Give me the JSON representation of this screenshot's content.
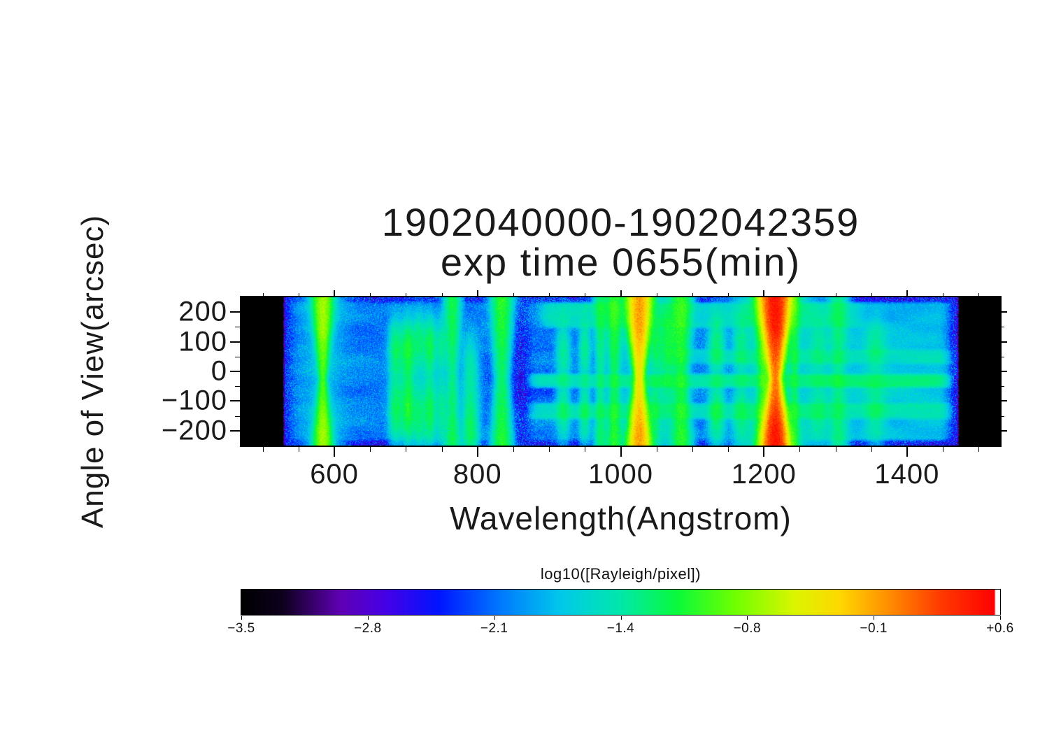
{
  "figure": {
    "background": "#ffffff",
    "axis_color": "#000000",
    "text_color": "#1a1a1a"
  },
  "title": {
    "line1": "1902040000-1902042359",
    "line2": "exp time 0655(min)"
  },
  "axes": {
    "x_label": "Wavelength(Angstrom)",
    "y_label": "Angle of View(arcsec)"
  },
  "colorbar": {
    "label": "log10([Rayleigh/pixel])",
    "tick_labels": [
      "−3.5",
      "−2.8",
      "−2.1",
      "−1.4",
      "−0.8",
      "−0.1",
      "+0.6"
    ],
    "tick_values": [
      -3.5,
      -2.8,
      -2.1,
      -1.4,
      -0.8,
      -0.1,
      0.6
    ],
    "min": -3.5,
    "max": 0.6
  },
  "chart_data": {
    "type": "heatmap",
    "title": "1902040000-1902042359",
    "subtitle": "exp time 0655(min)",
    "xlabel": "Wavelength(Angstrom)",
    "ylabel": "Angle of View(arcsec)",
    "xlim": [
      470,
      1530
    ],
    "ylim": [
      -250,
      250
    ],
    "x_tick_values": [
      600,
      800,
      1000,
      1200,
      1400
    ],
    "x_tick_labels": [
      "600",
      "800",
      "1000",
      "1200",
      "1400"
    ],
    "x_minor_step": 50,
    "y_tick_values": [
      200,
      100,
      0,
      -100,
      -200
    ],
    "y_tick_labels": [
      "200",
      "100",
      "0",
      "−100",
      "−200"
    ],
    "y_minor_step": 50,
    "value_scale": "log10([Rayleigh/pixel])",
    "value_range": [
      -3.5,
      0.6
    ],
    "data_region_angstrom": [
      528,
      1473
    ],
    "background_log10": -2.45,
    "noise_sigma_log10": 0.32,
    "emission_lines": [
      {
        "wavelength": 584,
        "peak_log10": -0.75,
        "width_angstrom": 8,
        "profile": "hourglass"
      },
      {
        "wavelength": 584,
        "peak_log10": -1.9,
        "width_angstrom": 22,
        "profile": "halo"
      },
      {
        "wavelength": 686,
        "peak_log10": -1.3,
        "width_angstrom": 6,
        "profile": "lobes"
      },
      {
        "wavelength": 703,
        "peak_log10": -1.15,
        "width_angstrom": 6,
        "profile": "lobes"
      },
      {
        "wavelength": 718,
        "peak_log10": -1.4,
        "width_angstrom": 5,
        "profile": "lobes"
      },
      {
        "wavelength": 733,
        "peak_log10": -1.25,
        "width_angstrom": 6,
        "profile": "lobes"
      },
      {
        "wavelength": 750,
        "peak_log10": -1.5,
        "width_angstrom": 5,
        "profile": "lobes"
      },
      {
        "wavelength": 765,
        "peak_log10": -1.2,
        "width_angstrom": 7,
        "profile": "geocoronal"
      },
      {
        "wavelength": 790,
        "peak_log10": -1.3,
        "width_angstrom": 7,
        "profile": "bottom"
      },
      {
        "wavelength": 834,
        "peak_log10": -1.05,
        "width_angstrom": 9,
        "profile": "geocoronal"
      },
      {
        "wavelength": 920,
        "peak_log10": -1.5,
        "width_angstrom": 6,
        "profile": "lobes"
      },
      {
        "wavelength": 950,
        "peak_log10": -1.45,
        "width_angstrom": 5,
        "profile": "lobes"
      },
      {
        "wavelength": 972,
        "peak_log10": -1.3,
        "width_angstrom": 6,
        "profile": "geocoronal"
      },
      {
        "wavelength": 991,
        "peak_log10": -1.1,
        "width_angstrom": 7,
        "profile": "geocoronal"
      },
      {
        "wavelength": 1026,
        "peak_log10": -0.12,
        "width_angstrom": 9,
        "profile": "hourglass"
      },
      {
        "wavelength": 1026,
        "peak_log10": -1.6,
        "width_angstrom": 25,
        "profile": "halo"
      },
      {
        "wavelength": 1048,
        "peak_log10": -1.45,
        "width_angstrom": 5,
        "profile": "lobes"
      },
      {
        "wavelength": 1066,
        "peak_log10": -1.3,
        "width_angstrom": 9,
        "profile": "upper"
      },
      {
        "wavelength": 1085,
        "peak_log10": -1.05,
        "width_angstrom": 9,
        "profile": "geocoronal"
      },
      {
        "wavelength": 1134,
        "peak_log10": -1.35,
        "width_angstrom": 7,
        "profile": "lobes"
      },
      {
        "wavelength": 1168,
        "peak_log10": -1.5,
        "width_angstrom": 7,
        "profile": "lobes"
      },
      {
        "wavelength": 1200,
        "peak_log10": -0.95,
        "width_angstrom": 7,
        "profile": "geocoronal"
      },
      {
        "wavelength": 1216,
        "peak_log10": 0.45,
        "width_angstrom": 10,
        "profile": "hourglass"
      },
      {
        "wavelength": 1216,
        "peak_log10": -1.3,
        "width_angstrom": 30,
        "profile": "halo"
      },
      {
        "wavelength": 1243,
        "peak_log10": -1.3,
        "width_angstrom": 5,
        "profile": "geocoronal"
      },
      {
        "wavelength": 1277,
        "peak_log10": -1.65,
        "width_angstrom": 8,
        "profile": "lobes"
      },
      {
        "wavelength": 1304,
        "peak_log10": -1.4,
        "width_angstrom": 9,
        "profile": "geocoronal"
      },
      {
        "wavelength": 1356,
        "peak_log10": -1.6,
        "width_angstrom": 9,
        "profile": "lobes"
      }
    ],
    "diffuse_bands": [
      {
        "wavelength_range": [
          865,
          1468
        ],
        "angle_range": [
          -62,
          -2
        ],
        "log10": -1.6
      },
      {
        "wavelength_range": [
          865,
          1468
        ],
        "angle_range": [
          -168,
          -100
        ],
        "log10": -1.78
      },
      {
        "wavelength_range": [
          880,
          1350
        ],
        "angle_range": [
          140,
          238
        ],
        "log10": -1.9
      },
      {
        "wavelength_range": [
          1050,
          1468
        ],
        "angle_range": [
          18,
          82
        ],
        "log10": -1.95
      },
      {
        "wavelength_range": [
          1245,
          1468
        ],
        "angle_range": [
          -240,
          240
        ],
        "log10": -2.1
      },
      {
        "wavelength_range": [
          528,
          830
        ],
        "angle_range": [
          -240,
          240
        ],
        "log10": -2.35
      },
      {
        "wavelength_range": [
          860,
          1468
        ],
        "angle_range": [
          -240,
          240
        ],
        "log10": -2.35
      }
    ],
    "colormap_stops": [
      [
        0.0,
        0,
        0,
        0
      ],
      [
        0.055,
        15,
        0,
        30
      ],
      [
        0.13,
        95,
        0,
        180
      ],
      [
        0.19,
        70,
        0,
        230
      ],
      [
        0.26,
        0,
        20,
        255
      ],
      [
        0.34,
        0,
        120,
        255
      ],
      [
        0.42,
        0,
        200,
        235
      ],
      [
        0.5,
        0,
        232,
        170
      ],
      [
        0.575,
        10,
        250,
        60
      ],
      [
        0.65,
        110,
        255,
        0
      ],
      [
        0.73,
        220,
        245,
        0
      ],
      [
        0.79,
        255,
        215,
        0
      ],
      [
        0.855,
        255,
        140,
        0
      ],
      [
        0.92,
        255,
        60,
        0
      ],
      [
        0.993,
        255,
        0,
        0
      ],
      [
        0.9945,
        255,
        255,
        255
      ],
      [
        1.0,
        255,
        255,
        255
      ]
    ]
  }
}
